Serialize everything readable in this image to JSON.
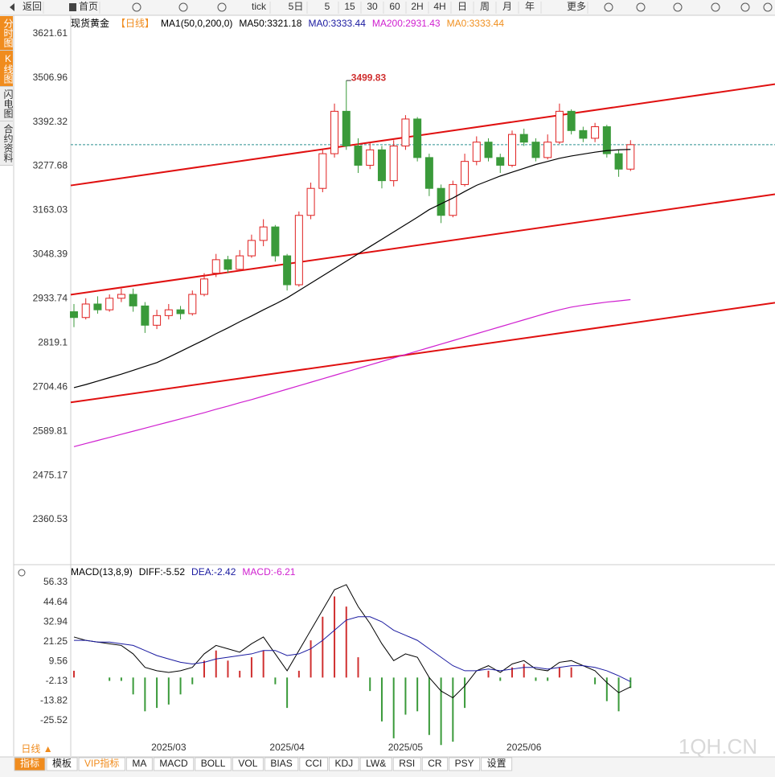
{
  "ui": {
    "toolbar": [
      "返回",
      "首页",
      "tick",
      "5日",
      "5",
      "15",
      "30",
      "60",
      "2H",
      "4H",
      "日",
      "周",
      "月",
      "年",
      "更多"
    ],
    "side_tabs": [
      "分时图",
      "K线图",
      "闪电图",
      "合约资料"
    ],
    "period_button": "日线 ▲",
    "bottom_tabs": [
      "指标",
      "模板",
      "VIP指标",
      "MA",
      "MACD",
      "BOLL",
      "VOL",
      "BIAS",
      "CCI",
      "KDJ",
      "LW&",
      "RSI",
      "CR",
      "PSY",
      "设置"
    ],
    "watermark": "1QH.CN"
  },
  "chart_data": [
    {
      "type": "candlestick",
      "title": "现货黄金",
      "period": "【日线】",
      "indicator": "MA1(50,0,200,0)",
      "xlim": [
        -0.27,
        59.2
      ],
      "ylim": [
        2248,
        3667
      ],
      "yticks": [
        3621.61,
        3506.96,
        3392.32,
        3277.68,
        3163.03,
        3048.39,
        2933.74,
        2819.1,
        2704.46,
        2589.81,
        2475.17,
        2360.53
      ],
      "up_color": "#e02020",
      "down_color": "#3a9a3a",
      "open": [
        2900,
        2885,
        2920,
        2905,
        2935,
        2945,
        2915,
        2865,
        2890,
        2905,
        2895,
        2945,
        3000,
        3035,
        3010,
        3045,
        3085,
        3120,
        3045,
        2970,
        3150,
        3220,
        3310,
        3420,
        3330,
        3280,
        3320,
        3240,
        3330,
        3400,
        3300,
        3220,
        3150,
        3230,
        3290,
        3340,
        3300,
        3280,
        3360,
        3340,
        3300,
        3340,
        3420,
        3370,
        3350,
        3380,
        3310,
        3270
      ],
      "high": [
        2920,
        2935,
        2940,
        2945,
        2960,
        2960,
        2925,
        2905,
        2920,
        2915,
        2955,
        3000,
        3050,
        3045,
        3060,
        3100,
        3140,
        3125,
        3050,
        3160,
        3235,
        3320,
        3440,
        3499.83,
        3350,
        3340,
        3330,
        3345,
        3410,
        3405,
        3310,
        3230,
        3240,
        3310,
        3355,
        3350,
        3310,
        3370,
        3375,
        3350,
        3360,
        3440,
        3425,
        3380,
        3390,
        3385,
        3320,
        3345
      ],
      "low": [
        2860,
        2880,
        2895,
        2900,
        2925,
        2900,
        2845,
        2855,
        2880,
        2880,
        2890,
        2940,
        2990,
        3000,
        3005,
        3040,
        3070,
        3030,
        2955,
        2965,
        3140,
        3210,
        3300,
        3320,
        3260,
        3270,
        3220,
        3225,
        3320,
        3290,
        3200,
        3130,
        3145,
        3225,
        3280,
        3290,
        3260,
        3275,
        3330,
        3290,
        3295,
        3335,
        3360,
        3340,
        3340,
        3300,
        3250,
        3265
      ],
      "close": [
        2885,
        2920,
        2905,
        2935,
        2945,
        2915,
        2865,
        2890,
        2905,
        2895,
        2945,
        2985,
        3035,
        3010,
        3045,
        3085,
        3120,
        3045,
        2970,
        3150,
        3220,
        3310,
        3420,
        3330,
        3280,
        3320,
        3240,
        3330,
        3400,
        3300,
        3220,
        3150,
        3230,
        3290,
        3340,
        3300,
        3280,
        3360,
        3340,
        3300,
        3340,
        3420,
        3370,
        3350,
        3380,
        3310,
        3270,
        3333.44
      ],
      "max_label": 3499.83,
      "series": [
        {
          "name": "MA50:3321.18",
          "color": "#000000",
          "values": [
            2703,
            2711,
            2720,
            2729,
            2738,
            2748,
            2758,
            2768,
            2782,
            2797,
            2812,
            2827,
            2843,
            2858,
            2874,
            2889,
            2905,
            2920,
            2936,
            2955,
            2974,
            2993,
            3012,
            3031,
            3050,
            3069,
            3088,
            3107,
            3126,
            3145,
            3165,
            3180,
            3195,
            3212,
            3228,
            3240,
            3252,
            3262,
            3272,
            3282,
            3290,
            3298,
            3304,
            3309,
            3314,
            3318,
            3320,
            3321.18
          ]
        },
        {
          "name": "MA200:2931.43",
          "color": "#d020d0",
          "values": [
            2550,
            2558,
            2566,
            2574,
            2582,
            2590,
            2598,
            2606,
            2614,
            2622,
            2630,
            2638,
            2647,
            2655,
            2664,
            2672,
            2681,
            2690,
            2699,
            2708,
            2717,
            2726,
            2735,
            2744,
            2753,
            2762,
            2771,
            2780,
            2789,
            2798,
            2807,
            2816,
            2825,
            2834,
            2843,
            2852,
            2861,
            2870,
            2879,
            2888,
            2897,
            2905,
            2912,
            2917,
            2921,
            2925,
            2928,
            2931.43
          ]
        }
      ],
      "legend_extra": [
        {
          "name": "MA0:3333.44",
          "color": "#1a1aa0"
        },
        {
          "name": "MA0:3333.44",
          "color": "#f09020"
        }
      ],
      "last_price": 3333.44,
      "last_price_color": "#2a9090",
      "trendline_color": "#e01010",
      "trendlines": [
        {
          "x": [
            -0.27,
            59.2
          ],
          "y": [
            3227.6,
            3490.3
          ]
        },
        {
          "x": [
            -0.27,
            59.2
          ],
          "y": [
            2944.2,
            3204.8
          ]
        },
        {
          "x": [
            -0.27,
            59.2
          ],
          "y": [
            2664.8,
            2923.3
          ]
        }
      ]
    },
    {
      "type": "macd",
      "title": "MACD(13,8,9)",
      "xlim": [
        -0.27,
        59.2
      ],
      "ylim": [
        -37,
        65.4
      ],
      "yticks": [
        56.33,
        44.64,
        32.94,
        21.25,
        9.56,
        -2.13,
        -13.82,
        -25.52
      ],
      "categories": [
        null,
        null,
        null,
        null,
        null,
        null,
        null,
        null,
        "2025/03",
        null,
        null,
        null,
        null,
        null,
        null,
        null,
        null,
        null,
        "2025/04",
        null,
        null,
        null,
        null,
        null,
        null,
        null,
        null,
        null,
        "2025/05",
        null,
        null,
        null,
        null,
        null,
        null,
        null,
        null,
        null,
        "2025/06",
        null,
        null,
        null,
        null,
        null,
        null,
        null,
        null,
        null
      ],
      "up_color": "#d03030",
      "down_color": "#3a9a3a",
      "series": [
        {
          "name": "DIFF:-5.52",
          "color": "#000000",
          "values": [
            24,
            22,
            21,
            20,
            19,
            14,
            6,
            4,
            3,
            4,
            6,
            14,
            19,
            17,
            15,
            20,
            24,
            14,
            4,
            16,
            28,
            40,
            52,
            55,
            42,
            32,
            20,
            10,
            14,
            12,
            0,
            -8,
            -12,
            -5,
            4,
            7,
            3,
            8,
            10,
            5,
            4,
            9,
            10,
            7,
            4,
            -3,
            -9,
            -5.52
          ]
        },
        {
          "name": "DEA:-2.42",
          "color": "#1a1aa0",
          "values": [
            22,
            22,
            21,
            21,
            20,
            19,
            16,
            13,
            11,
            9,
            8,
            9,
            11,
            12,
            13,
            14,
            16,
            16,
            13,
            14,
            17,
            22,
            28,
            34,
            36,
            36,
            33,
            28,
            25,
            22,
            17,
            12,
            7,
            4,
            4,
            5,
            4,
            5,
            6,
            6,
            5,
            6,
            7,
            7,
            6,
            4,
            1,
            -2.42
          ]
        },
        {
          "name": "MACD:-6.21",
          "color": "#d020d0",
          "values": [
            4,
            0,
            0,
            -2,
            -2,
            -10,
            -20,
            -18,
            -16,
            -10,
            -4,
            10,
            16,
            10,
            4,
            12,
            16,
            -4,
            -18,
            4,
            22,
            36,
            48,
            42,
            12,
            -8,
            -26,
            -36,
            -22,
            -20,
            -34,
            -40,
            -38,
            -18,
            0,
            4,
            -2,
            6,
            8,
            -2,
            -2,
            6,
            6,
            0,
            -4,
            -14,
            -20,
            -6.21
          ]
        }
      ]
    }
  ]
}
